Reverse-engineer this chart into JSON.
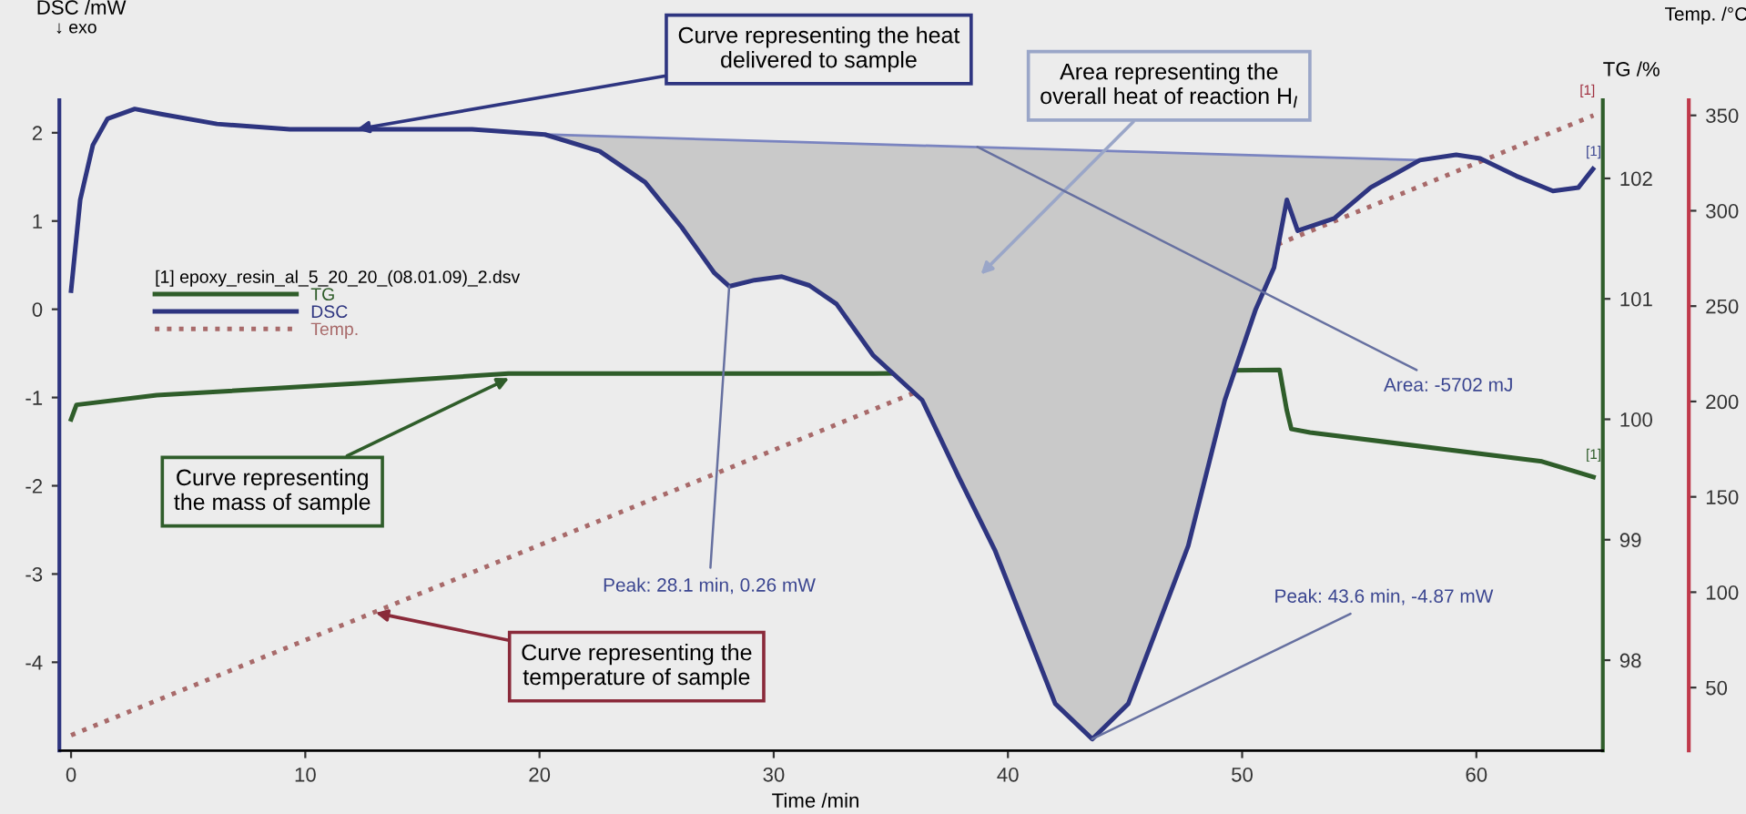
{
  "chart_data": {
    "type": "line",
    "xlabel": "Time /min",
    "ylabel": "DSC /mW",
    "y2label": "TG /%",
    "y3label": "Temp. /°C",
    "legend_title": "[1] epoxy_resin_al_5_20_20_(08.01.09)_2.dsv",
    "legend": "left",
    "grid": false,
    "xlim": [
      -0.5,
      65.4
    ],
    "xticks": [
      0,
      10,
      20,
      30,
      40,
      50,
      60
    ],
    "ylim": [
      -5,
      2.37
    ],
    "yticks": [
      -4,
      -3,
      -2,
      -1,
      0,
      1,
      2
    ],
    "y2lim": [
      97.25,
      102.65
    ],
    "y2ticks": [
      98,
      99,
      100,
      101,
      102
    ],
    "y3lim": [
      17,
      358
    ],
    "y3ticks": [
      50,
      100,
      150,
      200,
      250,
      300,
      350
    ],
    "series": [
      {
        "color": "#7a84c0",
        "x": [
          20.23,
          57.59
        ],
        "values": [
          1.98,
          1.69
        ]
      },
      {
        "name": "TG",
        "axis": "y2",
        "color": "#2f5d2a",
        "x": [
          0,
          0.23,
          3.66,
          12.45,
          18.68,
          34.24,
          51.6,
          51.9,
          52.1,
          52.9,
          62.8,
          65.0
        ],
        "values": [
          100.0,
          100.12,
          100.2,
          100.3,
          100.38,
          100.38,
          100.41,
          100.08,
          99.92,
          99.89,
          99.65,
          99.52
        ]
      },
      {
        "name": "DSC",
        "color": "#2e3580",
        "lower": [
          null,
          null,
          null,
          null,
          null,
          null,
          null,
          null,
          null,
          null,
          1.98,
          1.79,
          1.44,
          0.93,
          0.41,
          0.26,
          0.33,
          0.37,
          0.27,
          0.06,
          -0.52,
          -1.03,
          -1.9,
          -2.74,
          -4.47,
          -4.87,
          -4.47,
          -2.68,
          -1.03,
          0,
          0.47,
          1.24,
          0.89,
          1.03,
          1.38,
          1.69,
          null,
          null,
          null,
          null,
          null,
          null
        ],
        "upper": [
          null,
          null,
          null,
          null,
          null,
          null,
          null,
          null,
          null,
          null,
          1.98,
          1.96,
          1.95,
          1.93,
          1.92,
          1.92,
          1.91,
          1.9,
          1.89,
          1.88,
          1.87,
          1.86,
          1.84,
          1.83,
          1.81,
          1.8,
          1.79,
          1.77,
          1.75,
          1.74,
          1.74,
          1.73,
          1.73,
          1.72,
          1.71,
          1.69,
          null,
          null,
          null,
          null,
          null,
          null
        ],
        "x": [
          0,
          0.39,
          0.93,
          1.56,
          2.72,
          3.89,
          6.23,
          9.34,
          12.45,
          17.12,
          20.23,
          22.57,
          24.51,
          26.07,
          27.47,
          28.1,
          29.18,
          30.35,
          31.52,
          32.68,
          34.24,
          36.34,
          37.9,
          39.46,
          42.02,
          43.6,
          45.14,
          47.7,
          49.26,
          50.58,
          51.36,
          51.91,
          52.37,
          53.93,
          55.49,
          57.59,
          59.14,
          60.16,
          61.71,
          63.27,
          64.36,
          64.98
        ],
        "values": [
          0.21,
          1.24,
          1.86,
          2.16,
          2.27,
          2.21,
          2.1,
          2.04,
          2.04,
          2.04,
          1.98,
          1.79,
          1.44,
          0.93,
          0.41,
          0.26,
          0.33,
          0.37,
          0.27,
          0.06,
          -0.52,
          -1.03,
          -1.9,
          -2.74,
          -4.47,
          -4.87,
          -4.47,
          -2.68,
          -1.03,
          0,
          0.47,
          1.24,
          0.89,
          1.03,
          1.38,
          1.69,
          1.75,
          1.71,
          1.51,
          1.34,
          1.38,
          1.59
        ]
      },
      {
        "name": "Temp.",
        "axis": "y3",
        "color": "#a86a6a",
        "line_style": "dotted",
        "x": [
          0,
          32.5,
          65.0
        ],
        "values": [
          25,
          187,
          350
        ]
      }
    ],
    "annotations": [
      "↓ exo",
      {
        "text": "Curve representing the heat\ndelivered to sample",
        "x": 12.2,
        "y": 2.04
      },
      "Area representing the\noverall heat of reaction H$_{I}$",
      {
        "text": "Curve representing\nthe mass of sample",
        "x": 18.7,
        "y": -0.78
      },
      {
        "text": "Curve representing the\ntemperature of sample",
        "x": 13.0,
        "y": -3.44
      },
      {
        "text": "Peak: 28.1 min, 0.26 mW",
        "x": 28.1,
        "y": 0.26
      },
      {
        "text": "Peak: 43.6 min, -4.87 mW",
        "x": 43.6,
        "y": -4.87
      },
      {
        "text": "Area: -5702 mJ",
        "x": 38.7,
        "y": 1.84
      },
      "[1]",
      "[1]",
      "[1]"
    ]
  }
}
